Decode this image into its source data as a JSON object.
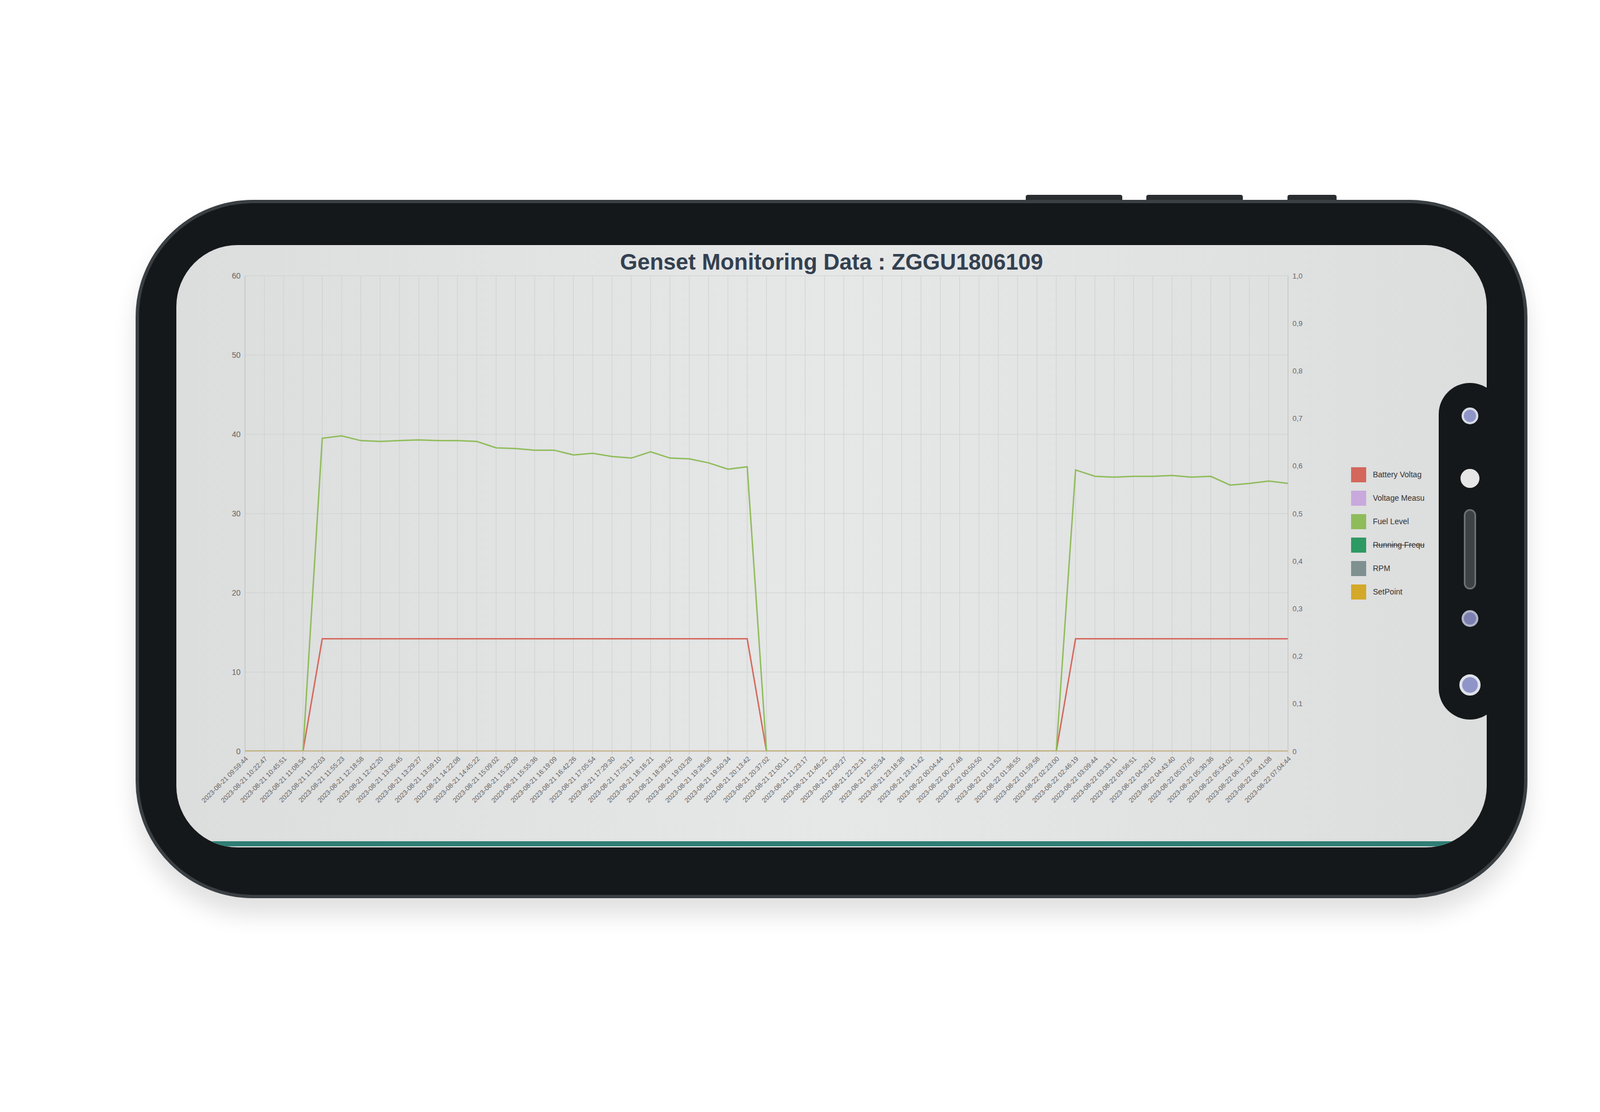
{
  "chart_data": {
    "type": "line",
    "title": "Genset Monitoring Data : ZGGU1806109",
    "categories": [
      "2023-08-21 09:59:44",
      "2023-08-21 10:22:47",
      "2023-08-21 10:45:51",
      "2023-08-21 11:08:54",
      "2023-08-21 11:32:03",
      "2023-08-21 11:55:23",
      "2023-08-21 12:18:58",
      "2023-08-21 12:42:20",
      "2023-08-21 13:05:45",
      "2023-08-21 13:29:27",
      "2023-08-21 13:59:10",
      "2023-08-21 14:22:08",
      "2023-08-21 14:45:22",
      "2023-08-21 15:09:02",
      "2023-08-21 15:32:09",
      "2023-08-21 15:55:36",
      "2023-08-21 16:19:09",
      "2023-08-21 16:42:26",
      "2023-08-21 17:05:54",
      "2023-08-21 17:29:30",
      "2023-08-21 17:53:12",
      "2023-08-21 18:16:21",
      "2023-08-21 18:39:52",
      "2023-08-21 19:03:28",
      "2023-08-21 19:26:58",
      "2023-08-21 19:50:34",
      "2023-08-21 20:13:42",
      "2023-08-21 20:37:02",
      "2023-08-21 21:00:11",
      "2023-08-21 21:23:17",
      "2023-08-21 21:46:22",
      "2023-08-21 22:09:27",
      "2023-08-21 22:32:31",
      "2023-08-21 22:55:34",
      "2023-08-21 23:18:38",
      "2023-08-21 23:41:42",
      "2023-08-22 00:04:44",
      "2023-08-22 00:27:48",
      "2023-08-22 00:50:50",
      "2023-08-22 01:13:53",
      "2023-08-22 01:36:55",
      "2023-08-22 01:59:58",
      "2023-08-22 02:23:00",
      "2023-08-22 02:46:19",
      "2023-08-22 03:09:44",
      "2023-08-22 03:33:11",
      "2023-08-22 03:56:51",
      "2023-08-22 04:20:15",
      "2023-08-22 04:43:40",
      "2023-08-22 05:07:05",
      "2023-08-22 05:30:36",
      "2023-08-22 05:54:02",
      "2023-08-22 06:17:33",
      "2023-08-22 06:41:08",
      "2023-08-22 07:04:44"
    ],
    "series": [
      {
        "name": "Battery Voltag",
        "color": "#d4675b",
        "values": [
          0,
          0,
          0,
          0,
          14.2,
          14.2,
          14.2,
          14.2,
          14.2,
          14.2,
          14.2,
          14.2,
          14.2,
          14.2,
          14.2,
          14.2,
          14.2,
          14.2,
          14.2,
          14.2,
          14.2,
          14.2,
          14.2,
          14.2,
          14.2,
          14.2,
          14.2,
          0,
          0,
          0,
          0,
          0,
          0,
          0,
          0,
          0,
          0,
          0,
          0,
          0,
          0,
          0,
          0,
          14.2,
          14.2,
          14.2,
          14.2,
          14.2,
          14.2,
          14.2,
          14.2,
          14.2,
          14.2,
          14.2,
          14.2
        ]
      },
      {
        "name": "Voltage Measu",
        "color": "#c9a9dc",
        "values": [
          0,
          0,
          0,
          0,
          0,
          0,
          0,
          0,
          0,
          0,
          0,
          0,
          0,
          0,
          0,
          0,
          0,
          0,
          0,
          0,
          0,
          0,
          0,
          0,
          0,
          0,
          0,
          0,
          0,
          0,
          0,
          0,
          0,
          0,
          0,
          0,
          0,
          0,
          0,
          0,
          0,
          0,
          0,
          0,
          0,
          0,
          0,
          0,
          0,
          0,
          0,
          0,
          0,
          0,
          0
        ]
      },
      {
        "name": "Fuel Level",
        "color": "#8fbc5a",
        "values": [
          0,
          0,
          0,
          0,
          39.5,
          39.8,
          39.2,
          39.1,
          39.2,
          39.3,
          39.2,
          39.2,
          39.1,
          38.3,
          38.2,
          38.0,
          38.0,
          37.4,
          37.6,
          37.2,
          37.0,
          37.8,
          37.0,
          36.9,
          36.4,
          35.6,
          35.9,
          0,
          0,
          0,
          0,
          0,
          0,
          0,
          0,
          0,
          0,
          0,
          0,
          0,
          0,
          0,
          0,
          35.5,
          34.7,
          34.6,
          34.7,
          34.7,
          34.8,
          34.6,
          34.7,
          33.6,
          33.8,
          34.1,
          33.8
        ]
      },
      {
        "name": "Running Frequ",
        "color": "#2e9a63",
        "values": [
          null,
          null,
          null,
          null,
          null,
          null,
          null,
          null,
          null,
          null,
          null,
          null,
          null,
          null,
          null,
          null,
          null,
          null,
          null,
          null,
          null,
          null,
          null,
          null,
          null,
          null,
          null,
          null,
          null,
          null,
          null,
          null,
          null,
          null,
          null,
          null,
          null,
          null,
          null,
          null,
          null,
          null,
          null,
          null,
          null,
          null,
          null,
          null,
          null,
          null,
          null,
          null,
          null,
          null,
          null
        ]
      },
      {
        "name": "RPM",
        "color": "#7f9090",
        "values": [
          0,
          0,
          0,
          0,
          0,
          0,
          0,
          0,
          0,
          0,
          0,
          0,
          0,
          0,
          0,
          0,
          0,
          0,
          0,
          0,
          0,
          0,
          0,
          0,
          0,
          0,
          0,
          0,
          0,
          0,
          0,
          0,
          0,
          0,
          0,
          0,
          0,
          0,
          0,
          0,
          0,
          0,
          0,
          0,
          0,
          0,
          0,
          0,
          0,
          0,
          0,
          0,
          0,
          0,
          0
        ]
      },
      {
        "name": "SetPoint",
        "color": "#d4a92a",
        "axis": "y2",
        "values": [
          0,
          0,
          0,
          0,
          0,
          0,
          0,
          0,
          0,
          0,
          0,
          0,
          0,
          0,
          0,
          0,
          0,
          0,
          0,
          0,
          0,
          0,
          0,
          0,
          0,
          0,
          0,
          0,
          0,
          0,
          0,
          0,
          0,
          0,
          0,
          0,
          0,
          0,
          0,
          0,
          0,
          0,
          0,
          0,
          0,
          0,
          0,
          0,
          0,
          0,
          0,
          0,
          0,
          0,
          0
        ]
      }
    ],
    "ylim": [
      0,
      60
    ],
    "yticks": [
      0,
      10,
      20,
      30,
      40,
      50,
      60
    ],
    "y2lim": [
      0,
      1
    ],
    "y2ticks": [
      0,
      {
        "value": 0.1,
        "label": "0,1"
      },
      {
        "value": 0.2,
        "label": "0,2"
      },
      {
        "value": 0.3,
        "label": "0,3"
      },
      {
        "value": 0.4,
        "label": "0,4"
      },
      {
        "value": 0.5,
        "label": "0,5"
      },
      {
        "value": 0.6,
        "label": "0,6"
      },
      {
        "value": 0.7,
        "label": "0,7"
      },
      {
        "value": 0.8,
        "label": "0,8"
      },
      {
        "value": 0.9,
        "label": "0,9"
      },
      {
        "value": 1,
        "label": "1,0"
      }
    ],
    "grid": true,
    "legend": "right"
  }
}
